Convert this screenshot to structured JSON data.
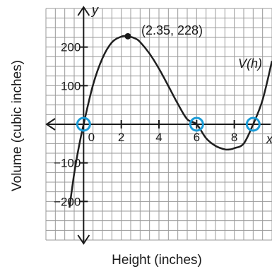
{
  "chart_data": {
    "type": "line",
    "xlabel": "Height (inches)",
    "ylabel": "Volume (cubic inches)",
    "x_axis_letter": "x",
    "y_axis_letter": "y",
    "xlim": [
      -2,
      10
    ],
    "ylim": [
      -300,
      300
    ],
    "grid": true,
    "x_ticks": [
      0,
      2,
      4,
      6,
      8
    ],
    "x_tick_labels": [
      "0",
      "2",
      "4",
      "6",
      "8"
    ],
    "y_ticks": [
      -200,
      -100,
      100,
      200
    ],
    "y_tick_labels": [
      "−200",
      "−100",
      "100",
      "200"
    ],
    "series": [
      {
        "name": "V(h)",
        "color": "#1f1f1f",
        "x": [
          -0.75,
          -0.5,
          -0.25,
          0,
          0.5,
          1,
          1.5,
          2,
          2.35,
          2.75,
          3,
          3.5,
          4,
          4.5,
          5,
          5.5,
          6,
          6.5,
          7,
          7.5,
          7.8,
          8,
          8.5,
          9,
          9.5,
          10
        ],
        "y": [
          -216,
          -128,
          -58,
          0,
          102,
          171,
          212,
          227,
          228,
          222,
          213,
          183,
          144,
          99,
          53,
          13,
          0,
          -36,
          -56,
          -65,
          -65,
          -62,
          -50,
          0,
          63,
          164
        ]
      }
    ],
    "zeros": [
      {
        "x": 0,
        "y": 0
      },
      {
        "x": 6,
        "y": 0
      },
      {
        "x": 9,
        "y": 0
      }
    ],
    "highlight_color": "#1a9bd7",
    "max_point": {
      "x": 2.35,
      "y": 228,
      "label": "(2.35, 228)"
    },
    "series_label": "V(h)"
  }
}
